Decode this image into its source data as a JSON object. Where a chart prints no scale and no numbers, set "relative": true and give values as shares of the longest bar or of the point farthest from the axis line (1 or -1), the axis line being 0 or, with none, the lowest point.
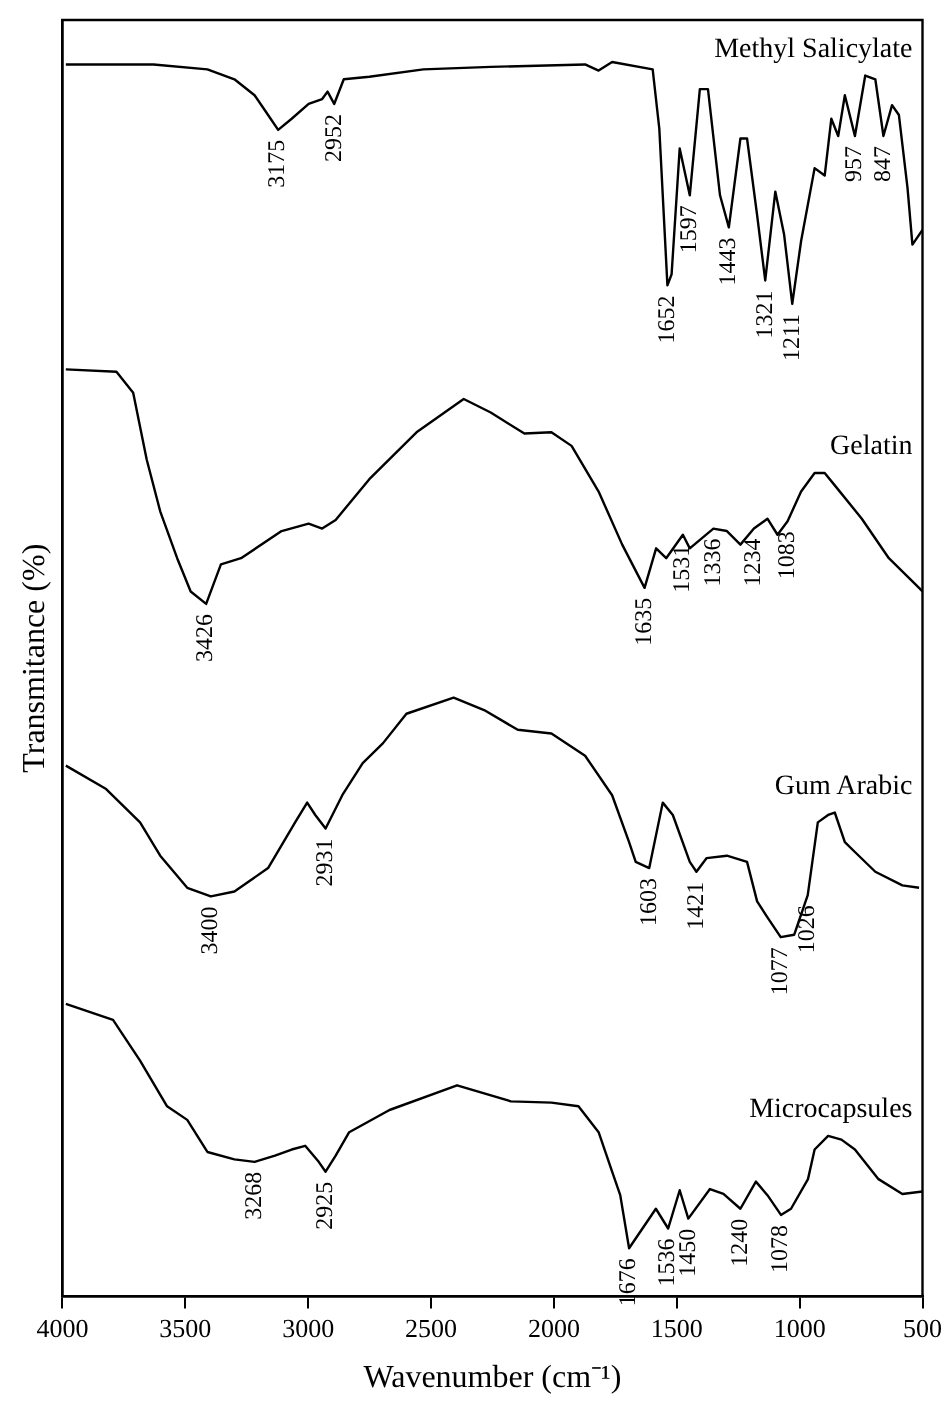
{
  "chart_data": {
    "type": "line",
    "relative": true,
    "xlabel": "Wavenumber (cm⁻¹)",
    "ylabel": "Transmitance (%)",
    "xlim": [
      4000,
      500
    ],
    "xticks": [
      4000,
      3500,
      3000,
      2500,
      2000,
      1500,
      1000,
      500
    ],
    "grid": false,
    "legend": false,
    "marker": "none",
    "line_style": "solid",
    "series": [
      {
        "name": "Methyl Salicylate",
        "color": "#000000",
        "x": [
          3986,
          3629,
          3410,
          3300,
          3218,
          3163,
          3122,
          3067,
          2998,
          2943,
          2921,
          2894,
          2855,
          2751,
          2531,
          2257,
          1873,
          1818,
          1763,
          1598,
          1571,
          1538,
          1521,
          1488,
          1447,
          1406,
          1373,
          1324,
          1288,
          1241,
          1214,
          1173,
          1140,
          1099,
          1063,
          1030,
          994,
          939,
          898,
          871,
          843,
          816,
          775,
          733,
          692,
          659,
          624,
          596,
          561,
          541,
          500
        ],
        "values": [
          0.998,
          0.998,
          0.994,
          0.986,
          0.973,
          0.957,
          0.945,
          0.954,
          0.966,
          0.97,
          0.976,
          0.966,
          0.986,
          0.988,
          0.994,
          0.996,
          0.998,
          0.993,
          1.0,
          0.994,
          0.946,
          0.819,
          0.828,
          0.93,
          0.892,
          0.978,
          0.978,
          0.892,
          0.866,
          0.938,
          0.938,
          0.876,
          0.823,
          0.895,
          0.86,
          0.804,
          0.855,
          0.914,
          0.908,
          0.954,
          0.94,
          0.973,
          0.94,
          0.989,
          0.986,
          0.94,
          0.965,
          0.957,
          0.898,
          0.852,
          0.864
        ]
      },
      {
        "name": "Gelatin",
        "color": "#000000",
        "x": [
          3986,
          3780,
          3712,
          3657,
          3602,
          3533,
          3478,
          3415,
          3355,
          3273,
          3108,
          2998,
          2943,
          2888,
          2751,
          2559,
          2367,
          2257,
          2120,
          2010,
          1928,
          1818,
          1722,
          1631,
          1584,
          1543,
          1475,
          1447,
          1351,
          1296,
          1241,
          1186,
          1131,
          1090,
          1049,
          994,
          939,
          898,
          857,
          747,
          637,
          514,
          500
        ],
        "values": [
          0.751,
          0.749,
          0.732,
          0.678,
          0.636,
          0.598,
          0.571,
          0.561,
          0.593,
          0.598,
          0.62,
          0.626,
          0.622,
          0.629,
          0.662,
          0.7,
          0.727,
          0.716,
          0.699,
          0.7,
          0.689,
          0.652,
          0.609,
          0.574,
          0.606,
          0.598,
          0.617,
          0.606,
          0.622,
          0.62,
          0.609,
          0.622,
          0.63,
          0.617,
          0.628,
          0.652,
          0.667,
          0.667,
          0.657,
          0.63,
          0.598,
          0.574,
          0.571
        ]
      },
      {
        "name": "Gum Arabic",
        "color": "#000000",
        "x": [
          3986,
          3822,
          3684,
          3602,
          3492,
          3396,
          3300,
          3163,
          3053,
          3004,
          2971,
          2929,
          2861,
          2778,
          2696,
          2600,
          2408,
          2284,
          2147,
          2010,
          1873,
          1763,
          1694,
          1667,
          1612,
          1557,
          1516,
          1447,
          1420,
          1379,
          1296,
          1214,
          1173,
          1131,
          1077,
          1022,
          967,
          926,
          884,
          857,
          816,
          775,
          692,
          582,
          514
        ],
        "values": [
          0.43,
          0.411,
          0.384,
          0.357,
          0.331,
          0.324,
          0.328,
          0.347,
          0.384,
          0.4,
          0.39,
          0.379,
          0.406,
          0.432,
          0.448,
          0.472,
          0.485,
          0.475,
          0.459,
          0.456,
          0.438,
          0.406,
          0.368,
          0.352,
          0.347,
          0.4,
          0.39,
          0.352,
          0.344,
          0.355,
          0.357,
          0.352,
          0.32,
          0.307,
          0.291,
          0.293,
          0.325,
          0.384,
          0.39,
          0.392,
          0.368,
          0.36,
          0.344,
          0.333,
          0.331
        ]
      },
      {
        "name": "Microcapsules",
        "color": "#000000",
        "x": [
          3986,
          3794,
          3684,
          3574,
          3492,
          3410,
          3300,
          3218,
          3135,
          3067,
          3012,
          2957,
          2929,
          2888,
          2833,
          2669,
          2394,
          2175,
          2010,
          1900,
          1818,
          1763,
          1730,
          1694,
          1585,
          1535,
          1488,
          1453,
          1365,
          1310,
          1241,
          1178,
          1131,
          1076,
          1035,
          966,
          939,
          884,
          830,
          775,
          679,
          582,
          500
        ],
        "values": [
          0.237,
          0.224,
          0.191,
          0.154,
          0.143,
          0.117,
          0.111,
          0.109,
          0.114,
          0.119,
          0.122,
          0.109,
          0.101,
          0.114,
          0.133,
          0.151,
          0.171,
          0.158,
          0.157,
          0.154,
          0.133,
          0.101,
          0.082,
          0.039,
          0.071,
          0.055,
          0.086,
          0.063,
          0.087,
          0.083,
          0.071,
          0.093,
          0.082,
          0.066,
          0.071,
          0.095,
          0.119,
          0.13,
          0.127,
          0.119,
          0.095,
          0.083,
          0.085
        ]
      }
    ],
    "annotations": [
      {
        "text": "3175",
        "x": 3122,
        "y": 0.945
      },
      {
        "text": "2952",
        "x": 2894,
        "y": 0.966
      },
      {
        "text": "1652",
        "x": 1538,
        "y": 0.819
      },
      {
        "text": "1597",
        "x": 1447,
        "y": 0.892
      },
      {
        "text": "1443",
        "x": 1288,
        "y": 0.866
      },
      {
        "text": "1321",
        "x": 1140,
        "y": 0.823
      },
      {
        "text": "1211",
        "x": 1030,
        "y": 0.804
      },
      {
        "text": "957",
        "x": 775,
        "y": 0.94
      },
      {
        "text": "847",
        "x": 659,
        "y": 0.94
      },
      {
        "text": "3426",
        "x": 3415,
        "y": 0.561
      },
      {
        "text": "1635",
        "x": 1631,
        "y": 0.574
      },
      {
        "text": "1531",
        "x": 1475,
        "y": 0.617
      },
      {
        "text": "1336",
        "x": 1351,
        "y": 0.622
      },
      {
        "text": "1234",
        "x": 1186,
        "y": 0.622
      },
      {
        "text": "1083",
        "x": 1049,
        "y": 0.628
      },
      {
        "text": "3400",
        "x": 3396,
        "y": 0.324
      },
      {
        "text": "2931",
        "x": 2929,
        "y": 0.379
      },
      {
        "text": "1603",
        "x": 1612,
        "y": 0.347
      },
      {
        "text": "1421",
        "x": 1420,
        "y": 0.344
      },
      {
        "text": "1077",
        "x": 1077,
        "y": 0.291
      },
      {
        "text": "1026",
        "x": 967,
        "y": 0.325
      },
      {
        "text": "3268",
        "x": 3218,
        "y": 0.109
      },
      {
        "text": "2925",
        "x": 2929,
        "y": 0.101
      },
      {
        "text": "1676",
        "x": 1694,
        "y": 0.039
      },
      {
        "text": "1536",
        "x": 1535,
        "y": 0.055
      },
      {
        "text": "1450",
        "x": 1453,
        "y": 0.063
      },
      {
        "text": "1240",
        "x": 1241,
        "y": 0.071
      },
      {
        "text": "1078",
        "x": 1076,
        "y": 0.066
      }
    ]
  }
}
